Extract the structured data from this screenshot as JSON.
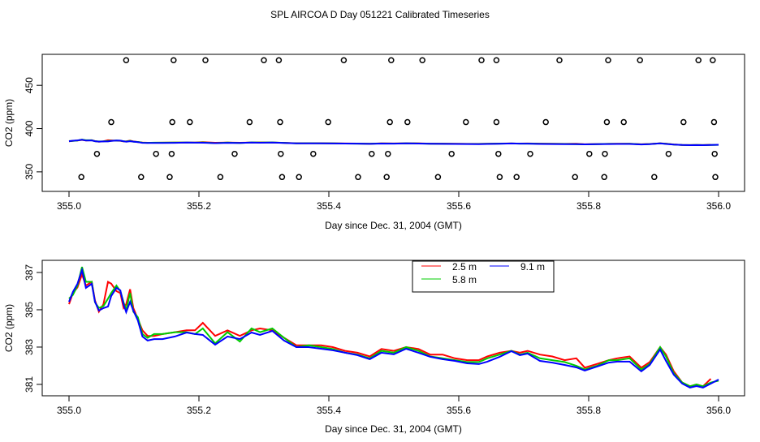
{
  "title": "SPL AIRCOA D  Day 051221  Calibrated Timeseries",
  "colors": {
    "2.5 m": "#ff0000",
    "5.8 m": "#00cc00",
    "9.1 m": "#0000ff",
    "circles": "#000000"
  },
  "chart_data": [
    {
      "type": "scatter",
      "xlabel": "Day since Dec. 31, 2004 (GMT)",
      "ylabel": "CO2 (ppm)",
      "xlim": [
        355.0,
        356.0
      ],
      "ylim": [
        327.4,
        485.8
      ],
      "xticks": [
        "355.0",
        "355.2",
        "355.4",
        "355.6",
        "355.8",
        "356.0"
      ],
      "yticks": [
        "350",
        "400",
        "450"
      ],
      "grid": false,
      "circles": [
        {
          "y": 479,
          "x": [
            355.088,
            355.161,
            355.21,
            355.3,
            355.323,
            355.423,
            355.496,
            355.544,
            355.635,
            355.658,
            355.755,
            355.83,
            355.879,
            355.969,
            355.991
          ]
        },
        {
          "y": 407.5,
          "x": [
            355.065,
            355.159,
            355.186,
            355.278,
            355.325,
            355.399,
            355.494,
            355.521,
            355.611,
            355.658,
            355.734,
            355.828,
            355.854,
            355.946,
            355.993
          ]
        },
        {
          "y": 370.8,
          "x": [
            355.043,
            355.134,
            355.158,
            355.255,
            355.326,
            355.376,
            355.466,
            355.491,
            355.589,
            355.661,
            355.71,
            355.801,
            355.825,
            355.923,
            355.994
          ]
        },
        {
          "y": 344,
          "x": [
            355.019,
            355.111,
            355.155,
            355.233,
            355.328,
            355.354,
            355.445,
            355.489,
            355.568,
            355.663,
            355.689,
            355.779,
            355.824,
            355.901,
            355.995
          ]
        }
      ],
      "lines_from_panel": 1
    },
    {
      "type": "line",
      "xlabel": "Day since Dec. 31, 2004 (GMT)",
      "ylabel": "CO2 (ppm)",
      "xlim": [
        355.0,
        356.0
      ],
      "ylim": [
        380.39,
        387.65
      ],
      "xticks": [
        "355.0",
        "355.2",
        "355.4",
        "355.6",
        "355.8",
        "356.0"
      ],
      "yticks": [
        "381",
        "383",
        "385",
        "387"
      ],
      "grid": false,
      "legend": "top-center",
      "x": [
        355.0,
        355.006,
        355.013,
        355.02,
        355.026,
        355.035,
        355.04,
        355.046,
        355.053,
        355.06,
        355.065,
        355.073,
        355.079,
        355.084,
        355.088,
        355.094,
        355.099,
        355.106,
        355.113,
        355.121,
        355.131,
        355.144,
        355.163,
        355.181,
        355.194,
        355.206,
        355.225,
        355.244,
        355.263,
        355.281,
        355.294,
        355.313,
        355.331,
        355.35,
        355.369,
        355.388,
        355.406,
        355.425,
        355.444,
        355.463,
        355.481,
        355.5,
        355.519,
        355.538,
        355.556,
        355.575,
        355.594,
        355.613,
        355.631,
        355.644,
        355.663,
        355.681,
        355.694,
        355.706,
        355.725,
        355.744,
        355.763,
        355.781,
        355.794,
        355.813,
        355.831,
        355.844,
        355.863,
        355.881,
        355.894,
        355.91,
        355.919,
        355.931,
        355.944,
        355.956,
        355.966,
        355.976,
        355.988,
        356.0
      ],
      "series": [
        {
          "name": "2.5 m",
          "values": [
            385.3,
            385.9,
            386.2,
            386.9,
            386.3,
            386.5,
            385.5,
            384.9,
            385.3,
            386.5,
            386.4,
            386.0,
            385.9,
            385.1,
            385.3,
            386.1,
            385.1,
            384.5,
            383.9,
            383.6,
            383.6,
            383.7,
            383.8,
            383.9,
            383.9,
            384.3,
            383.6,
            383.9,
            383.6,
            383.9,
            384.0,
            383.9,
            383.5,
            383.1,
            383.1,
            383.1,
            383.0,
            382.8,
            382.7,
            382.5,
            382.9,
            382.8,
            383.0,
            382.9,
            382.6,
            382.6,
            382.4,
            382.3,
            382.3,
            382.5,
            382.7,
            382.8,
            382.7,
            382.8,
            382.6,
            382.5,
            382.3,
            382.4,
            381.9,
            382.1,
            382.3,
            382.4,
            382.5,
            381.9,
            382.2,
            383.0,
            382.6,
            381.7,
            381.1,
            380.9,
            381.0,
            380.9,
            381.3,
            null
          ]
        },
        {
          "name": "5.8 m",
          "values": [
            385.6,
            385.8,
            386.3,
            387.3,
            386.5,
            386.5,
            385.4,
            385.1,
            385.2,
            385.6,
            385.9,
            386.3,
            386.0,
            385.4,
            385.0,
            385.9,
            384.9,
            384.6,
            383.7,
            383.5,
            383.7,
            383.7,
            383.8,
            383.8,
            383.7,
            384.0,
            383.2,
            383.8,
            383.3,
            384.0,
            383.8,
            384.0,
            383.5,
            383.0,
            383.1,
            383.0,
            382.9,
            382.7,
            382.6,
            382.4,
            382.8,
            382.7,
            383.0,
            382.8,
            382.5,
            382.4,
            382.3,
            382.2,
            382.2,
            382.4,
            382.6,
            382.8,
            382.6,
            382.7,
            382.4,
            382.3,
            382.2,
            382.0,
            381.8,
            382.0,
            382.3,
            382.3,
            382.4,
            381.8,
            382.1,
            383.0,
            382.5,
            381.6,
            381.1,
            380.9,
            381.0,
            380.9,
            381.1,
            381.2
          ]
        },
        {
          "name": "9.1 m",
          "values": [
            385.43,
            385.96,
            386.39,
            387.13,
            386.17,
            386.39,
            385.43,
            384.96,
            385.09,
            385.17,
            385.74,
            386.17,
            386.04,
            385.3,
            384.87,
            385.43,
            384.96,
            384.43,
            383.57,
            383.35,
            383.43,
            383.43,
            383.57,
            383.78,
            383.7,
            383.65,
            383.13,
            383.57,
            383.43,
            383.78,
            383.65,
            383.87,
            383.35,
            383.0,
            383.0,
            382.91,
            382.83,
            382.7,
            382.57,
            382.35,
            382.7,
            382.61,
            382.91,
            382.7,
            382.48,
            382.35,
            382.26,
            382.13,
            382.09,
            382.22,
            382.48,
            382.78,
            382.57,
            382.65,
            382.26,
            382.17,
            382.04,
            381.91,
            381.74,
            381.96,
            382.17,
            382.22,
            382.22,
            381.7,
            382.04,
            382.87,
            382.26,
            381.52,
            381.04,
            380.83,
            380.91,
            380.83,
            381.04,
            381.26
          ]
        }
      ]
    }
  ]
}
